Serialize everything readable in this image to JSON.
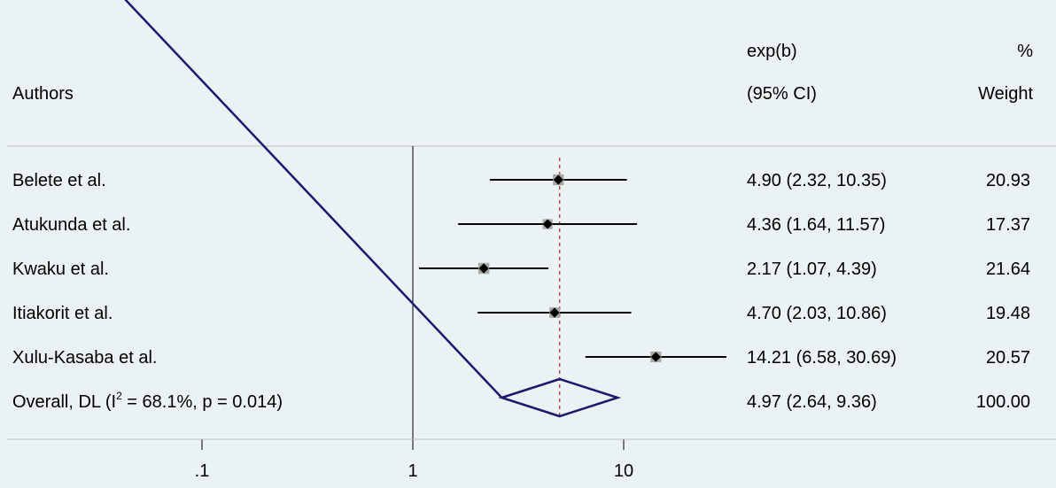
{
  "chart_data": {
    "type": "forest",
    "scale": "log",
    "axis": {
      "ticks": [
        {
          "value": 0.1,
          "label": ".1"
        },
        {
          "value": 1,
          "label": "1"
        },
        {
          "value": 10,
          "label": "10"
        }
      ],
      "null_line": 1
    },
    "header": {
      "authors": "Authors",
      "estimate_line1": "exp(b)",
      "estimate_line2": "(95% CI)",
      "weight_line1": "%",
      "weight_line2": "Weight"
    },
    "studies": [
      {
        "label": "Belete et al.",
        "estimate": 4.9,
        "lower": 2.32,
        "upper": 10.35,
        "ci_text": "4.90 (2.32, 10.35)",
        "weight": 20.93,
        "weight_text": "20.93"
      },
      {
        "label": "Atukunda et al.",
        "estimate": 4.36,
        "lower": 1.64,
        "upper": 11.57,
        "ci_text": "4.36 (1.64, 11.57)",
        "weight": 17.37,
        "weight_text": "17.37"
      },
      {
        "label": "Kwaku et al.",
        "estimate": 2.17,
        "lower": 1.07,
        "upper": 4.39,
        "ci_text": "2.17 (1.07, 4.39)",
        "weight": 21.64,
        "weight_text": "21.64"
      },
      {
        "label": "Itiakorit et al.",
        "estimate": 4.7,
        "lower": 2.03,
        "upper": 10.86,
        "ci_text": "4.70 (2.03, 10.86)",
        "weight": 19.48,
        "weight_text": "19.48"
      },
      {
        "label": "Xulu-Kasaba et al.",
        "estimate": 14.21,
        "lower": 6.58,
        "upper": 30.69,
        "ci_text": "14.21 (6.58, 30.69)",
        "weight": 20.57,
        "weight_text": "20.57"
      }
    ],
    "overall": {
      "label_prefix": "Overall, DL (I",
      "label_sup": "2",
      "label_suffix": " = 68.1%, p = 0.014)",
      "estimate": 4.97,
      "lower": 2.64,
      "upper": 9.36,
      "ci_text": "4.97 (2.64, 9.36)",
      "weight_text": "100.00"
    },
    "colors": {
      "background": "#eaf2f3",
      "diamond": "#1a1a6e",
      "marker_box": "#a9a9a9",
      "overall_line": "#b22222",
      "separator": "#bdbdbd"
    }
  }
}
